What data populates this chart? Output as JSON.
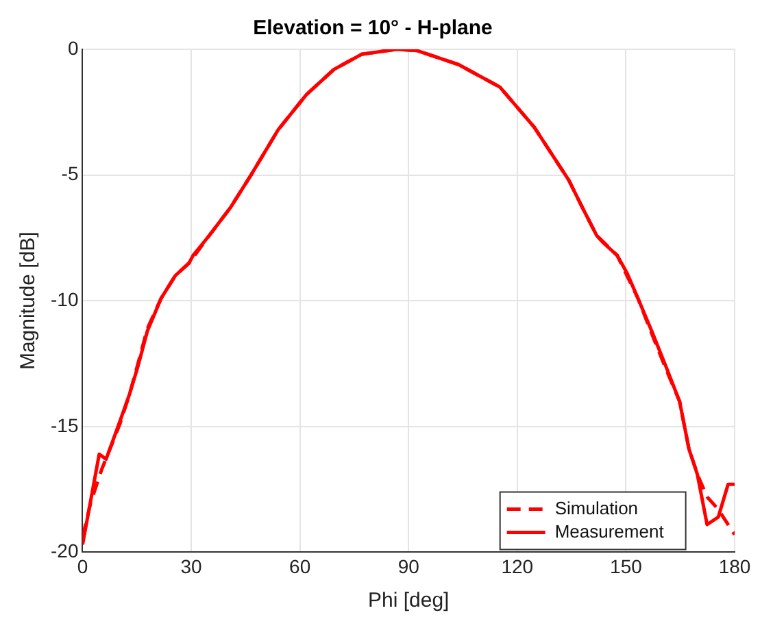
{
  "chart_data": {
    "type": "line",
    "title": "Elevation = 10° - H-plane",
    "xlabel": "Phi [deg]",
    "ylabel": "Magnitude [dB]",
    "xlim": [
      0,
      180
    ],
    "ylim": [
      -20,
      0
    ],
    "xticks": [
      0,
      30,
      60,
      90,
      120,
      150,
      180
    ],
    "yticks": [
      -20,
      -15,
      -10,
      -5,
      0
    ],
    "grid": true,
    "legend": "bottom right",
    "marker": "none",
    "series": [
      {
        "name": "Simulation",
        "color": "#ff0000",
        "line_style": "dashed",
        "x": [
          0,
          2.3,
          5.3,
          8.4,
          10.3,
          13,
          15.3,
          17.9,
          21.7,
          25.6,
          29.4,
          35,
          40.8,
          46.5,
          54,
          61.8,
          69.4,
          77,
          86.6,
          92.3,
          103.7,
          115.2,
          124.7,
          134.2,
          138,
          141.9,
          147.6,
          153.3,
          157.1,
          161,
          164.8,
          167.4,
          170,
          172.4,
          175.5,
          180
        ],
        "values": [
          -19.4,
          -18,
          -16.7,
          -15.6,
          -14.9,
          -13.7,
          -12.5,
          -11.1,
          -9.9,
          -9.0,
          -8.5,
          -7.4,
          -6.3,
          -5.0,
          -3.2,
          -1.8,
          -0.8,
          -0.2,
          0,
          -0.05,
          -0.6,
          -1.5,
          -3.1,
          -5.2,
          -6.3,
          -7.4,
          -8.2,
          -9.9,
          -11.3,
          -12.7,
          -14.0,
          -15.9,
          -17.0,
          -17.8,
          -18.3,
          -19.3
        ]
      },
      {
        "name": "Measurement",
        "color": "#ff0000",
        "line_style": "solid",
        "x": [
          0,
          4.6,
          6.5,
          10.3,
          13,
          15.3,
          17.9,
          21.7,
          25.6,
          29.4,
          30.5,
          35,
          40.8,
          46.5,
          54,
          61.8,
          69.4,
          77,
          86.6,
          92.3,
          103.7,
          115.2,
          124.7,
          134.2,
          138,
          141.9,
          143.8,
          147.6,
          150.3,
          153.3,
          157.1,
          161,
          164.8,
          167.4,
          169.7,
          172.4,
          175.5,
          178.2,
          180
        ],
        "values": [
          -19.7,
          -16.1,
          -16.3,
          -14.8,
          -13.7,
          -12.6,
          -11.2,
          -9.9,
          -9.0,
          -8.5,
          -8.2,
          -7.4,
          -6.3,
          -5.0,
          -3.2,
          -1.8,
          -0.8,
          -0.2,
          0,
          -0.05,
          -0.6,
          -1.5,
          -3.1,
          -5.2,
          -6.3,
          -7.4,
          -7.7,
          -8.2,
          -8.9,
          -9.9,
          -11.2,
          -12.6,
          -14.0,
          -15.9,
          -16.9,
          -18.9,
          -18.6,
          -17.3,
          -17.3
        ]
      }
    ]
  }
}
